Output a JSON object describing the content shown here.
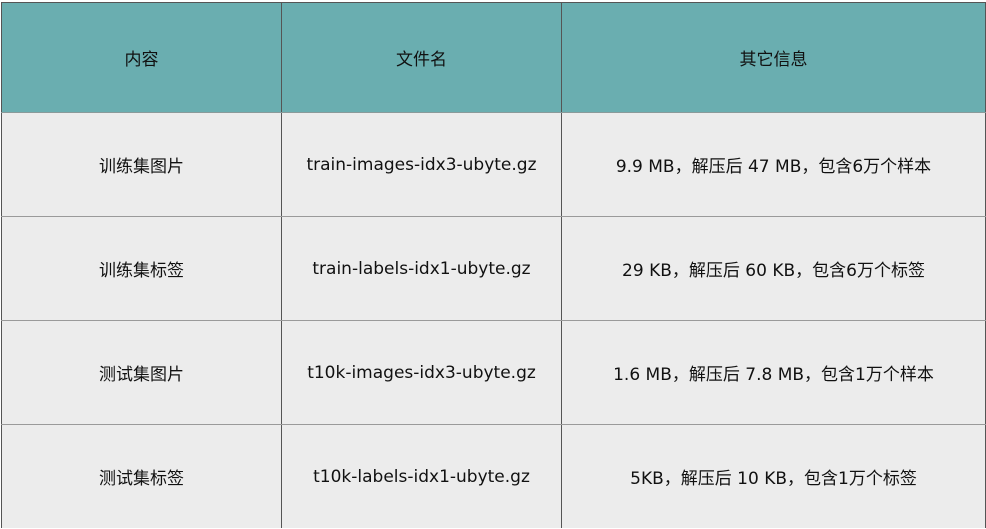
{
  "table": {
    "headers": [
      "内容",
      "文件名",
      "其它信息"
    ],
    "rows": [
      [
        "训练集图片",
        "train-images-idx3-ubyte.gz",
        "9.9 MB，解压后 47 MB，包含6万个样本"
      ],
      [
        "训练集标签",
        "train-labels-idx1-ubyte.gz",
        "29 KB，解压后 60 KB，包含6万个标签"
      ],
      [
        "测试集图片",
        "t10k-images-idx3-ubyte.gz",
        "1.6 MB，解压后 7.8 MB，包含1万个样本"
      ],
      [
        "测试集标签",
        "t10k-labels-idx1-ubyte.gz",
        "5KB，解压后 10 KB，包含1万个标签"
      ]
    ]
  },
  "colors": {
    "header_bg": "#6aaeb0",
    "row_bg": "#ececec"
  }
}
